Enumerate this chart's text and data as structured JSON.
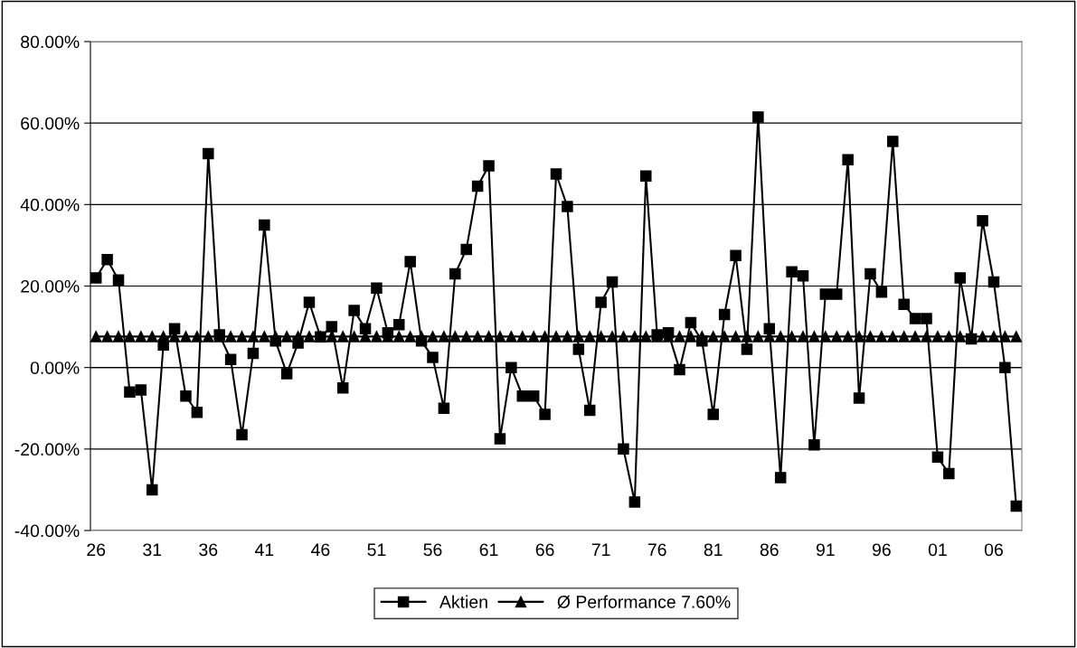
{
  "chart_data": {
    "type": "line",
    "categories": [
      "26",
      null,
      null,
      null,
      null,
      "31",
      null,
      null,
      null,
      null,
      "36",
      null,
      null,
      null,
      null,
      "41",
      null,
      null,
      null,
      null,
      "46",
      null,
      null,
      null,
      null,
      "51",
      null,
      null,
      null,
      null,
      "56",
      null,
      null,
      null,
      null,
      "61",
      null,
      null,
      null,
      null,
      "66",
      null,
      null,
      null,
      null,
      "71",
      null,
      null,
      null,
      null,
      "76",
      null,
      null,
      null,
      null,
      "81",
      null,
      null,
      null,
      null,
      "86",
      null,
      null,
      null,
      null,
      "91",
      null,
      null,
      null,
      null,
      "96",
      null,
      null,
      null,
      null,
      "01",
      null,
      null,
      null,
      null,
      "06",
      null,
      null
    ],
    "series": [
      {
        "name": "Aktien",
        "color": "#000000",
        "marker": "square",
        "values": [
          22,
          26.5,
          21.5,
          -6,
          -5.5,
          -30,
          5.5,
          9.5,
          -7,
          -11,
          52.5,
          8,
          2,
          -16.5,
          3.5,
          35,
          6.5,
          -1.5,
          6,
          16,
          7.5,
          10,
          -5,
          14,
          9.5,
          19.5,
          8.5,
          10.5,
          26,
          6.5,
          2.5,
          -10,
          23,
          29,
          44.5,
          49.5,
          -17.5,
          0,
          -7,
          -7,
          -11.5,
          47.5,
          39.5,
          4.5,
          -10.5,
          16,
          21,
          -20,
          -33,
          47,
          8,
          8.5,
          -0.5,
          11,
          6.5,
          -11.5,
          13,
          27.5,
          4.5,
          61.5,
          9.5,
          -27,
          23.5,
          22.5,
          -19,
          18,
          18,
          51,
          -7.5,
          23,
          18.5,
          55.5,
          15.5,
          12,
          12,
          -22,
          -26,
          22,
          7,
          36,
          21,
          0,
          -34
        ]
      },
      {
        "name": "Ø Performance 7.60%",
        "color": "#000000",
        "marker": "triangle",
        "values": [
          7.6,
          7.6,
          7.6,
          7.6,
          7.6,
          7.6,
          7.6,
          7.6,
          7.6,
          7.6,
          7.6,
          7.6,
          7.6,
          7.6,
          7.6,
          7.6,
          7.6,
          7.6,
          7.6,
          7.6,
          7.6,
          7.6,
          7.6,
          7.6,
          7.6,
          7.6,
          7.6,
          7.6,
          7.6,
          7.6,
          7.6,
          7.6,
          7.6,
          7.6,
          7.6,
          7.6,
          7.6,
          7.6,
          7.6,
          7.6,
          7.6,
          7.6,
          7.6,
          7.6,
          7.6,
          7.6,
          7.6,
          7.6,
          7.6,
          7.6,
          7.6,
          7.6,
          7.6,
          7.6,
          7.6,
          7.6,
          7.6,
          7.6,
          7.6,
          7.6,
          7.6,
          7.6,
          7.6,
          7.6,
          7.6,
          7.6,
          7.6,
          7.6,
          7.6,
          7.6,
          7.6,
          7.6,
          7.6,
          7.6,
          7.6,
          7.6,
          7.6,
          7.6,
          7.6,
          7.6,
          7.6,
          7.6,
          7.6
        ]
      }
    ],
    "ylim": [
      -40,
      80
    ],
    "yticks": [
      {
        "value": -40,
        "label": "-40.00%"
      },
      {
        "value": -20,
        "label": "-20.00%"
      },
      {
        "value": 0,
        "label": "0.00%"
      },
      {
        "value": 20,
        "label": "20.00%"
      },
      {
        "value": 40,
        "label": "40.00%"
      },
      {
        "value": 60,
        "label": "60.00%"
      },
      {
        "value": 80,
        "label": "80.00%"
      }
    ],
    "grid": "y",
    "legend": "bottom",
    "line_style": "solid"
  }
}
